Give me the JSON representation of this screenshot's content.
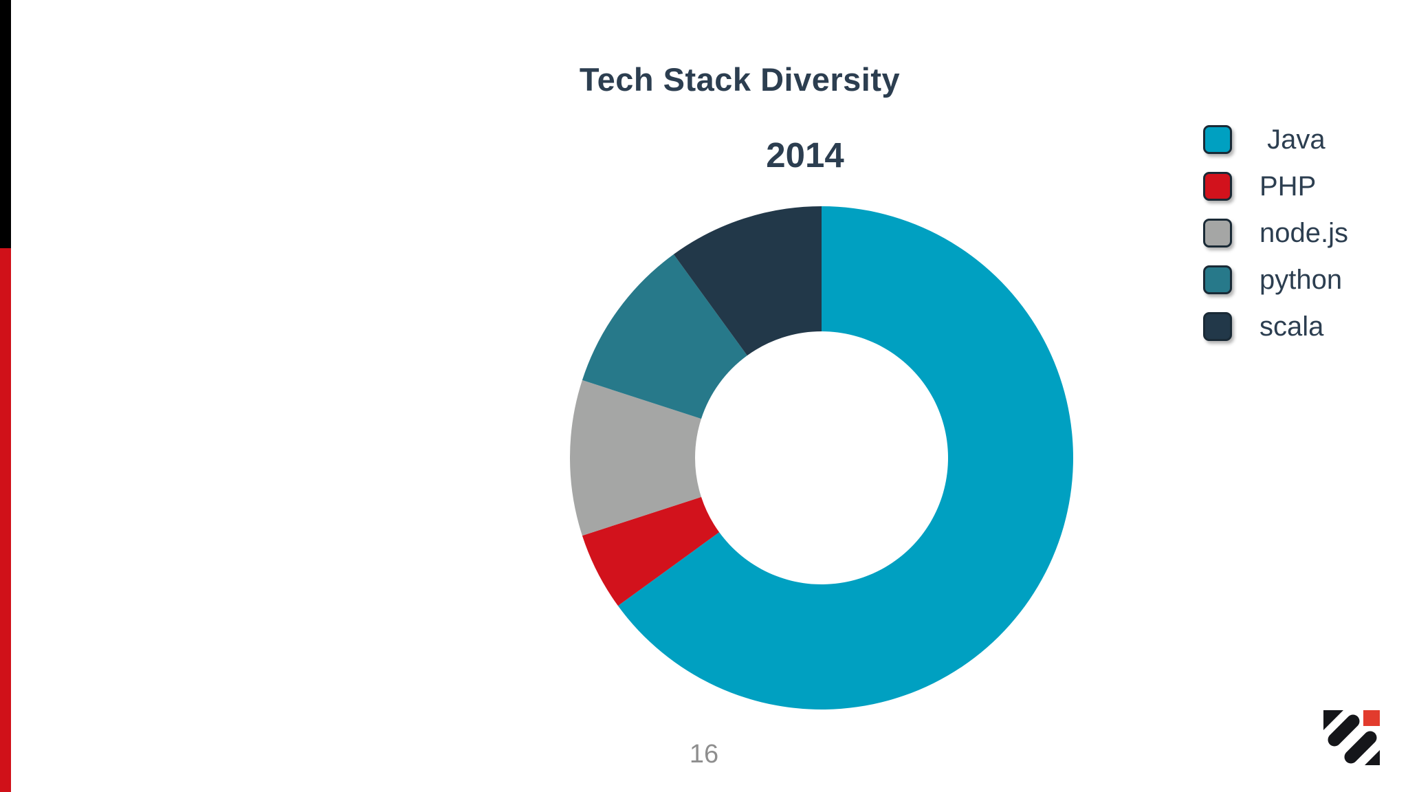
{
  "slide": {
    "title": "Tech Stack Diversity",
    "page_number": "16"
  },
  "accent_bars": {
    "top_color": "#000000",
    "bottom_color": "#d01119"
  },
  "chart_data": {
    "type": "pie",
    "variant": "donut",
    "title": "2014",
    "categories": [
      "Java",
      "PHP",
      "node.js",
      "python",
      "scala"
    ],
    "values": [
      65,
      5,
      10,
      10,
      10
    ],
    "colors": [
      "#00a0c1",
      "#d2121c",
      "#a5a6a5",
      "#27798a",
      "#223849"
    ],
    "start_angle_deg": 0,
    "direction": "clockwise",
    "inner_radius_ratio": 0.503,
    "legend_position": "right",
    "grid": false
  },
  "legend": {
    "items": [
      {
        "label": " Java",
        "color": "#00a0c1"
      },
      {
        "label": "PHP",
        "color": "#d2121c"
      },
      {
        "label": "node.js",
        "color": "#a5a6a5"
      },
      {
        "label": "python",
        "color": "#27798a"
      },
      {
        "label": "scala",
        "color": "#223849"
      }
    ]
  },
  "logo": {
    "stripe_color": "#15161a",
    "square_color": "#e23b2d"
  }
}
